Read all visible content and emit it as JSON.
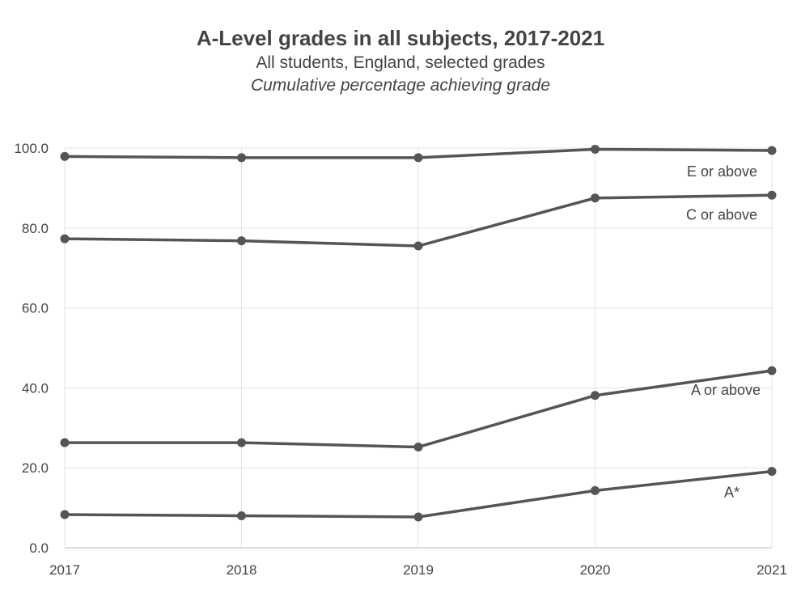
{
  "chart_data": {
    "type": "line",
    "title": "A-Level grades in all subjects, 2017-2021",
    "subtitle": "All students, England, selected grades",
    "subtitle2": "Cumulative percentage achieving grade",
    "x": [
      2017,
      2018,
      2019,
      2020,
      2021
    ],
    "x_tick_labels": [
      "2017",
      "2018",
      "2019",
      "2020",
      "2021"
    ],
    "ylim": [
      0,
      100
    ],
    "y_ticks": [
      0,
      20,
      40,
      60,
      80,
      100
    ],
    "y_tick_labels": [
      "0.0",
      "20.0",
      "40.0",
      "60.0",
      "80.0",
      "100.0"
    ],
    "grid": true,
    "line_color": "#555555",
    "series": [
      {
        "name": "E or above",
        "values": [
          97.9,
          97.6,
          97.6,
          99.7,
          99.4
        ]
      },
      {
        "name": "C or above",
        "values": [
          77.3,
          76.8,
          75.5,
          87.5,
          88.2
        ]
      },
      {
        "name": "A or above",
        "values": [
          26.3,
          26.3,
          25.2,
          38.1,
          44.3
        ]
      },
      {
        "name": "A*",
        "values": [
          8.3,
          8.0,
          7.7,
          14.3,
          19.1
        ]
      }
    ]
  }
}
